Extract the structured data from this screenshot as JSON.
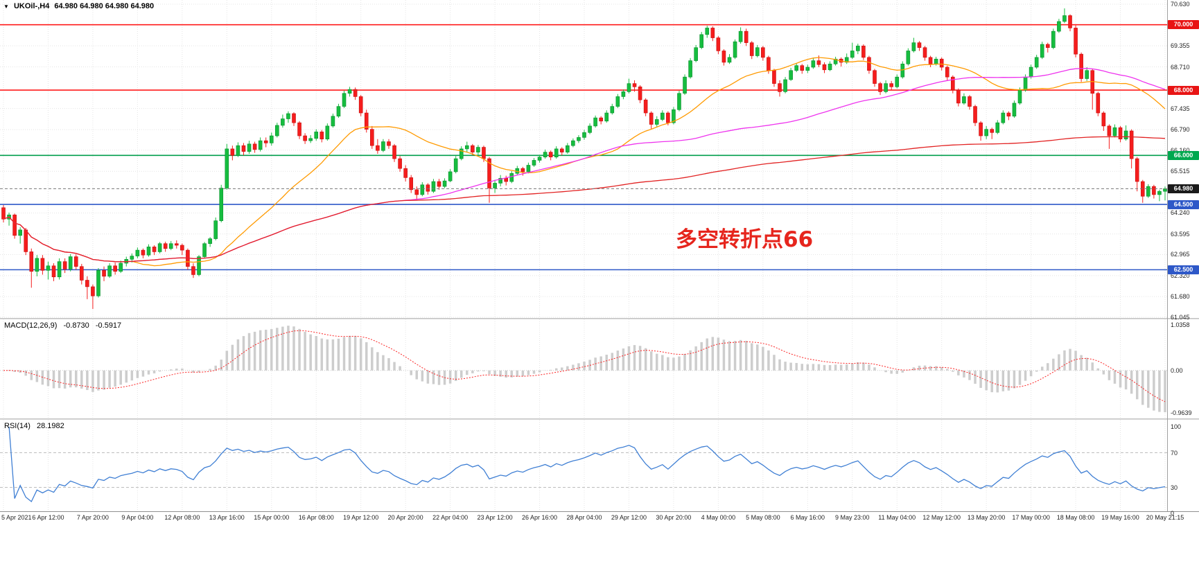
{
  "window": {
    "expander": "▼",
    "symbol": "UKOil-,H4",
    "ohlc": "64.980 64.980 64.980 64.980"
  },
  "annotation": {
    "text": "多空转折点66",
    "color": "#e6251d"
  },
  "panels": {
    "macd": {
      "header": "MACD(12,26,9)",
      "value_main": "-0.8730",
      "value_signal": "-0.5917",
      "ticks": [
        "1.0358",
        "0.00",
        "-0.9639"
      ]
    },
    "rsi": {
      "header": "RSI(14)",
      "value": "28.1982",
      "ticks": [
        "100",
        "70",
        "30",
        "0"
      ],
      "levels": [
        70,
        30
      ]
    }
  },
  "chart_data": {
    "type": "candlestick",
    "symbol": "UKOil-",
    "timeframe": "H4",
    "current_price": 64.98,
    "ylim": [
      61.045,
      70.63
    ],
    "y_axis_ticks": [
      "70.630",
      "69.355",
      "68.710",
      "67.435",
      "66.790",
      "66.160",
      "65.515",
      "64.240",
      "63.595",
      "62.965",
      "62.320",
      "61.680",
      "61.045"
    ],
    "x_axis_labels": [
      "5 Apr 2021",
      "6 Apr 12:00",
      "7 Apr 20:00",
      "9 Apr 04:00",
      "12 Apr 08:00",
      "13 Apr 16:00",
      "15 Apr 00:00",
      "16 Apr 08:00",
      "19 Apr 12:00",
      "20 Apr 20:00",
      "22 Apr 04:00",
      "23 Apr 12:00",
      "26 Apr 16:00",
      "28 Apr 04:00",
      "29 Apr 12:00",
      "30 Apr 20:00",
      "4 May 00:00",
      "5 May 08:00",
      "6 May 16:00",
      "9 May 23:00",
      "11 May 04:00",
      "12 May 12:00",
      "13 May 20:00",
      "17 May 00:00",
      "18 May 08:00",
      "19 May 16:00",
      "20 May 21:15"
    ],
    "bars_per_label": 8,
    "colors": {
      "up": "#16bd3f",
      "up_border": "#0b8f2e",
      "down": "#f51d1d",
      "down_border": "#c51111",
      "grid": "#e4e4e4",
      "macd_hist": "#cdcdcd",
      "macd_signal": "#fb2222",
      "rsi_line": "#3f7fd4",
      "rsi_level": "#bdbdbd"
    },
    "ma": [
      {
        "name": "ma-fast-orange",
        "period": 24,
        "color": "#ff9a00"
      },
      {
        "name": "ma-mid-magenta",
        "period": 72,
        "color": "#ee33ee"
      },
      {
        "name": "ma-slow-red",
        "period": 300,
        "color": "#e22222"
      }
    ],
    "levels": [
      {
        "value": 70.0,
        "label": "70.000",
        "color": "#ff1a1a",
        "badge": "#e81414",
        "style": "solid"
      },
      {
        "value": 68.0,
        "label": "68.000",
        "color": "#ff1a1a",
        "badge": "#e81414",
        "style": "solid"
      },
      {
        "value": 66.0,
        "label": "66.000",
        "color": "#009e4c",
        "badge": "#00a84f",
        "style": "solid"
      },
      {
        "value": 64.98,
        "label": "64.980",
        "color": "#777777",
        "badge": "#1b1b1b",
        "style": "current"
      },
      {
        "value": 64.5,
        "label": "64.500",
        "color": "#2e58c8",
        "badge": "#2e58c8",
        "style": "solid"
      },
      {
        "value": 62.5,
        "label": "62.500",
        "color": "#2e58c8",
        "badge": "#2e58c8",
        "style": "solid"
      }
    ],
    "indicators": {
      "macd": {
        "fast": 12,
        "slow": 26,
        "signal": 9,
        "range": [
          -0.9639,
          1.0358
        ]
      },
      "rsi": {
        "period": 14,
        "range": [
          0,
          100
        ]
      }
    },
    "candles": [
      [
        64.4,
        64.48,
        63.95,
        64.05
      ],
      [
        64.05,
        64.25,
        63.85,
        64.18
      ],
      [
        64.18,
        64.22,
        63.45,
        63.55
      ],
      [
        63.55,
        63.8,
        63.3,
        63.72
      ],
      [
        63.72,
        63.78,
        62.95,
        63.05
      ],
      [
        63.05,
        63.15,
        61.95,
        62.45
      ],
      [
        62.45,
        62.95,
        62.3,
        62.85
      ],
      [
        62.85,
        62.95,
        62.35,
        62.48
      ],
      [
        62.48,
        62.75,
        62.2,
        62.62
      ],
      [
        62.62,
        62.7,
        62.15,
        62.28
      ],
      [
        62.28,
        62.85,
        62.2,
        62.75
      ],
      [
        62.75,
        62.85,
        62.4,
        62.52
      ],
      [
        62.52,
        62.98,
        62.45,
        62.9
      ],
      [
        62.9,
        62.97,
        62.5,
        62.6
      ],
      [
        62.6,
        62.68,
        62.05,
        62.18
      ],
      [
        62.18,
        62.3,
        61.6,
        61.98
      ],
      [
        61.98,
        62.05,
        61.3,
        61.7
      ],
      [
        61.7,
        62.55,
        61.65,
        62.48
      ],
      [
        62.48,
        62.6,
        62.15,
        62.3
      ],
      [
        62.3,
        62.7,
        62.25,
        62.62
      ],
      [
        62.62,
        62.72,
        62.35,
        62.45
      ],
      [
        62.45,
        62.78,
        62.4,
        62.7
      ],
      [
        62.7,
        62.9,
        62.6,
        62.82
      ],
      [
        62.82,
        63.0,
        62.72,
        62.92
      ],
      [
        62.92,
        63.18,
        62.85,
        63.1
      ],
      [
        63.1,
        63.15,
        62.85,
        62.95
      ],
      [
        62.95,
        63.28,
        62.9,
        63.2
      ],
      [
        63.2,
        63.25,
        62.95,
        63.05
      ],
      [
        63.05,
        63.35,
        63.0,
        63.3
      ],
      [
        63.3,
        63.36,
        63.05,
        63.15
      ],
      [
        63.15,
        63.38,
        63.1,
        63.3
      ],
      [
        63.3,
        63.4,
        63.15,
        63.25
      ],
      [
        63.25,
        63.3,
        62.95,
        63.1
      ],
      [
        63.1,
        63.15,
        62.5,
        62.6
      ],
      [
        62.6,
        62.7,
        62.25,
        62.35
      ],
      [
        62.35,
        62.95,
        62.3,
        62.9
      ],
      [
        62.9,
        63.35,
        62.85,
        63.3
      ],
      [
        63.3,
        63.5,
        63.2,
        63.45
      ],
      [
        63.45,
        64.1,
        63.4,
        64.0
      ],
      [
        64.0,
        65.1,
        63.95,
        65.0
      ],
      [
        65.0,
        66.35,
        64.95,
        66.2
      ],
      [
        66.2,
        66.3,
        65.85,
        66.0
      ],
      [
        66.0,
        66.4,
        65.95,
        66.3
      ],
      [
        66.3,
        66.38,
        66.0,
        66.12
      ],
      [
        66.12,
        66.45,
        66.05,
        66.35
      ],
      [
        66.35,
        66.42,
        66.08,
        66.18
      ],
      [
        66.18,
        66.55,
        66.12,
        66.45
      ],
      [
        66.45,
        66.55,
        66.25,
        66.38
      ],
      [
        66.38,
        66.7,
        66.3,
        66.6
      ],
      [
        66.6,
        67.0,
        66.55,
        66.92
      ],
      [
        66.92,
        67.25,
        66.85,
        67.12
      ],
      [
        67.12,
        67.35,
        67.0,
        67.28
      ],
      [
        67.28,
        67.32,
        66.9,
        67.0
      ],
      [
        67.0,
        67.05,
        66.5,
        66.6
      ],
      [
        66.6,
        66.68,
        66.35,
        66.45
      ],
      [
        66.45,
        66.62,
        66.38,
        66.52
      ],
      [
        66.52,
        66.8,
        66.45,
        66.72
      ],
      [
        66.72,
        66.78,
        66.4,
        66.5
      ],
      [
        66.5,
        66.98,
        66.45,
        66.9
      ],
      [
        66.9,
        67.28,
        66.85,
        67.2
      ],
      [
        67.2,
        67.58,
        67.15,
        67.5
      ],
      [
        67.5,
        67.98,
        67.45,
        67.9
      ],
      [
        67.9,
        68.1,
        67.8,
        68.02
      ],
      [
        68.02,
        68.08,
        67.7,
        67.8
      ],
      [
        67.8,
        67.85,
        67.2,
        67.3
      ],
      [
        67.3,
        67.4,
        66.7,
        66.8
      ],
      [
        66.8,
        66.9,
        66.2,
        66.3
      ],
      [
        66.3,
        66.5,
        66.05,
        66.15
      ],
      [
        66.15,
        66.5,
        66.1,
        66.42
      ],
      [
        66.42,
        66.5,
        66.2,
        66.3
      ],
      [
        66.3,
        66.35,
        65.8,
        65.9
      ],
      [
        65.9,
        65.98,
        65.5,
        65.6
      ],
      [
        65.6,
        65.7,
        65.2,
        65.32
      ],
      [
        65.32,
        65.4,
        64.85,
        64.95
      ],
      [
        64.95,
        65.05,
        64.62,
        64.8
      ],
      [
        64.8,
        65.18,
        64.75,
        65.1
      ],
      [
        65.1,
        65.15,
        64.8,
        64.9
      ],
      [
        64.9,
        65.28,
        64.85,
        65.2
      ],
      [
        65.2,
        65.28,
        64.95,
        65.05
      ],
      [
        65.05,
        65.3,
        65.0,
        65.22
      ],
      [
        65.22,
        65.58,
        65.18,
        65.5
      ],
      [
        65.5,
        65.98,
        65.45,
        65.9
      ],
      [
        65.9,
        66.28,
        65.85,
        66.2
      ],
      [
        66.2,
        66.42,
        66.1,
        66.3
      ],
      [
        66.3,
        66.35,
        66.0,
        66.1
      ],
      [
        66.1,
        66.32,
        66.02,
        66.25
      ],
      [
        66.25,
        66.3,
        65.8,
        65.9
      ],
      [
        65.9,
        65.95,
        64.55,
        65.0
      ],
      [
        65.0,
        65.25,
        64.85,
        65.15
      ],
      [
        65.15,
        65.4,
        65.05,
        65.3
      ],
      [
        65.3,
        65.38,
        65.08,
        65.2
      ],
      [
        65.2,
        65.52,
        65.15,
        65.45
      ],
      [
        65.45,
        65.68,
        65.4,
        65.6
      ],
      [
        65.6,
        65.65,
        65.38,
        65.5
      ],
      [
        65.5,
        65.78,
        65.45,
        65.7
      ],
      [
        65.7,
        65.92,
        65.65,
        65.85
      ],
      [
        65.85,
        66.02,
        65.78,
        65.95
      ],
      [
        65.95,
        66.18,
        65.9,
        66.1
      ],
      [
        66.1,
        66.15,
        65.85,
        65.95
      ],
      [
        65.95,
        66.28,
        65.9,
        66.2
      ],
      [
        66.2,
        66.25,
        66.0,
        66.1
      ],
      [
        66.1,
        66.38,
        66.05,
        66.3
      ],
      [
        66.3,
        66.52,
        66.25,
        66.45
      ],
      [
        66.45,
        66.62,
        66.38,
        66.55
      ],
      [
        66.55,
        66.78,
        66.48,
        66.7
      ],
      [
        66.7,
        66.98,
        66.65,
        66.9
      ],
      [
        66.9,
        67.22,
        66.85,
        67.15
      ],
      [
        67.15,
        67.2,
        66.95,
        67.05
      ],
      [
        67.05,
        67.38,
        67.0,
        67.3
      ],
      [
        67.3,
        67.58,
        67.25,
        67.5
      ],
      [
        67.5,
        67.88,
        67.45,
        67.8
      ],
      [
        67.8,
        68.02,
        67.72,
        67.95
      ],
      [
        67.95,
        68.35,
        67.9,
        68.2
      ],
      [
        68.2,
        68.3,
        67.95,
        68.1
      ],
      [
        68.1,
        68.15,
        67.6,
        67.7
      ],
      [
        67.7,
        67.75,
        67.2,
        67.3
      ],
      [
        67.3,
        67.35,
        66.8,
        66.95
      ],
      [
        66.95,
        67.2,
        66.88,
        67.1
      ],
      [
        67.1,
        67.38,
        67.05,
        67.3
      ],
      [
        67.3,
        67.35,
        66.92,
        67.0
      ],
      [
        67.0,
        67.48,
        66.95,
        67.4
      ],
      [
        67.4,
        67.98,
        67.35,
        67.9
      ],
      [
        67.9,
        68.48,
        67.85,
        68.4
      ],
      [
        68.4,
        68.98,
        68.35,
        68.9
      ],
      [
        68.9,
        69.38,
        68.85,
        69.3
      ],
      [
        69.3,
        69.78,
        69.25,
        69.7
      ],
      [
        69.7,
        69.97,
        69.6,
        69.9
      ],
      [
        69.9,
        69.95,
        69.5,
        69.6
      ],
      [
        69.6,
        69.65,
        69.1,
        69.2
      ],
      [
        69.2,
        69.25,
        68.75,
        68.85
      ],
      [
        68.85,
        69.1,
        68.8,
        69.0
      ],
      [
        69.0,
        69.55,
        68.95,
        69.48
      ],
      [
        69.48,
        69.92,
        69.42,
        69.8
      ],
      [
        69.8,
        69.88,
        69.35,
        69.45
      ],
      [
        69.45,
        69.5,
        68.95,
        69.05
      ],
      [
        69.05,
        69.38,
        69.0,
        69.3
      ],
      [
        69.3,
        69.35,
        68.9,
        69.0
      ],
      [
        69.0,
        69.05,
        68.5,
        68.6
      ],
      [
        68.6,
        68.65,
        68.1,
        68.2
      ],
      [
        68.2,
        68.3,
        67.8,
        67.95
      ],
      [
        67.95,
        68.4,
        67.9,
        68.32
      ],
      [
        68.32,
        68.68,
        68.28,
        68.6
      ],
      [
        68.6,
        68.82,
        68.55,
        68.75
      ],
      [
        68.75,
        68.8,
        68.5,
        68.6
      ],
      [
        68.6,
        68.78,
        68.52,
        68.7
      ],
      [
        68.7,
        68.98,
        68.65,
        68.9
      ],
      [
        68.9,
        69.06,
        68.7,
        68.78
      ],
      [
        68.78,
        68.85,
        68.52,
        68.62
      ],
      [
        68.62,
        68.88,
        68.58,
        68.8
      ],
      [
        68.8,
        69.02,
        68.75,
        68.95
      ],
      [
        68.95,
        69.0,
        68.72,
        68.85
      ],
      [
        68.85,
        69.12,
        68.8,
        69.0
      ],
      [
        69.0,
        69.45,
        68.95,
        69.2
      ],
      [
        69.2,
        69.42,
        69.1,
        69.35
      ],
      [
        69.35,
        69.4,
        68.92,
        69.0
      ],
      [
        69.0,
        69.05,
        68.5,
        68.6
      ],
      [
        68.6,
        68.65,
        68.1,
        68.2
      ],
      [
        68.2,
        68.25,
        67.85,
        67.95
      ],
      [
        67.95,
        68.3,
        67.9,
        68.2
      ],
      [
        68.2,
        68.28,
        68.0,
        68.1
      ],
      [
        68.1,
        68.48,
        68.05,
        68.4
      ],
      [
        68.4,
        68.88,
        68.35,
        68.8
      ],
      [
        68.8,
        69.28,
        68.75,
        69.2
      ],
      [
        69.2,
        69.6,
        69.15,
        69.45
      ],
      [
        69.45,
        69.5,
        69.2,
        69.3
      ],
      [
        69.3,
        69.35,
        68.9,
        69.0
      ],
      [
        69.0,
        69.05,
        68.7,
        68.8
      ],
      [
        68.8,
        69.02,
        68.75,
        68.95
      ],
      [
        68.95,
        69.0,
        68.6,
        68.7
      ],
      [
        68.7,
        68.75,
        68.3,
        68.4
      ],
      [
        68.4,
        68.45,
        67.9,
        68.0
      ],
      [
        68.0,
        68.05,
        67.5,
        67.6
      ],
      [
        67.6,
        67.9,
        67.55,
        67.8
      ],
      [
        67.8,
        67.85,
        67.4,
        67.5
      ],
      [
        67.5,
        67.55,
        66.9,
        67.0
      ],
      [
        67.0,
        67.05,
        66.45,
        66.6
      ],
      [
        66.6,
        66.9,
        66.5,
        66.8
      ],
      [
        66.8,
        66.85,
        66.5,
        66.7
      ],
      [
        66.7,
        67.08,
        66.65,
        67.0
      ],
      [
        67.0,
        67.38,
        66.95,
        67.3
      ],
      [
        67.3,
        67.35,
        67.08,
        67.2
      ],
      [
        67.2,
        67.68,
        67.15,
        67.6
      ],
      [
        67.6,
        68.08,
        67.55,
        68.0
      ],
      [
        68.0,
        68.48,
        67.95,
        68.4
      ],
      [
        68.4,
        68.78,
        68.35,
        68.7
      ],
      [
        68.7,
        69.08,
        68.65,
        69.0
      ],
      [
        69.0,
        69.48,
        68.95,
        69.4
      ],
      [
        69.4,
        69.45,
        69.15,
        69.3
      ],
      [
        69.3,
        69.88,
        69.25,
        69.8
      ],
      [
        69.8,
        70.18,
        69.75,
        70.1
      ],
      [
        70.1,
        70.5,
        70.05,
        70.28
      ],
      [
        70.28,
        70.32,
        69.8,
        69.9
      ],
      [
        69.9,
        69.98,
        69.0,
        69.1
      ],
      [
        69.1,
        69.15,
        68.25,
        68.35
      ],
      [
        68.35,
        68.7,
        68.28,
        68.6
      ],
      [
        68.6,
        68.65,
        67.4,
        67.9
      ],
      [
        67.9,
        67.95,
        67.2,
        67.3
      ],
      [
        67.3,
        67.35,
        66.75,
        66.9
      ],
      [
        66.9,
        66.95,
        66.2,
        66.6
      ],
      [
        66.6,
        66.95,
        66.55,
        66.85
      ],
      [
        66.85,
        66.9,
        66.4,
        66.5
      ],
      [
        66.5,
        66.92,
        66.45,
        66.75
      ],
      [
        66.75,
        66.8,
        65.6,
        65.9
      ],
      [
        65.9,
        65.95,
        64.9,
        65.2
      ],
      [
        65.2,
        65.25,
        64.55,
        64.75
      ],
      [
        64.75,
        65.12,
        64.7,
        65.05
      ],
      [
        65.05,
        65.1,
        64.68,
        64.8
      ],
      [
        64.8,
        64.95,
        64.6,
        64.9
      ],
      [
        64.9,
        65.05,
        64.62,
        64.98
      ]
    ]
  }
}
